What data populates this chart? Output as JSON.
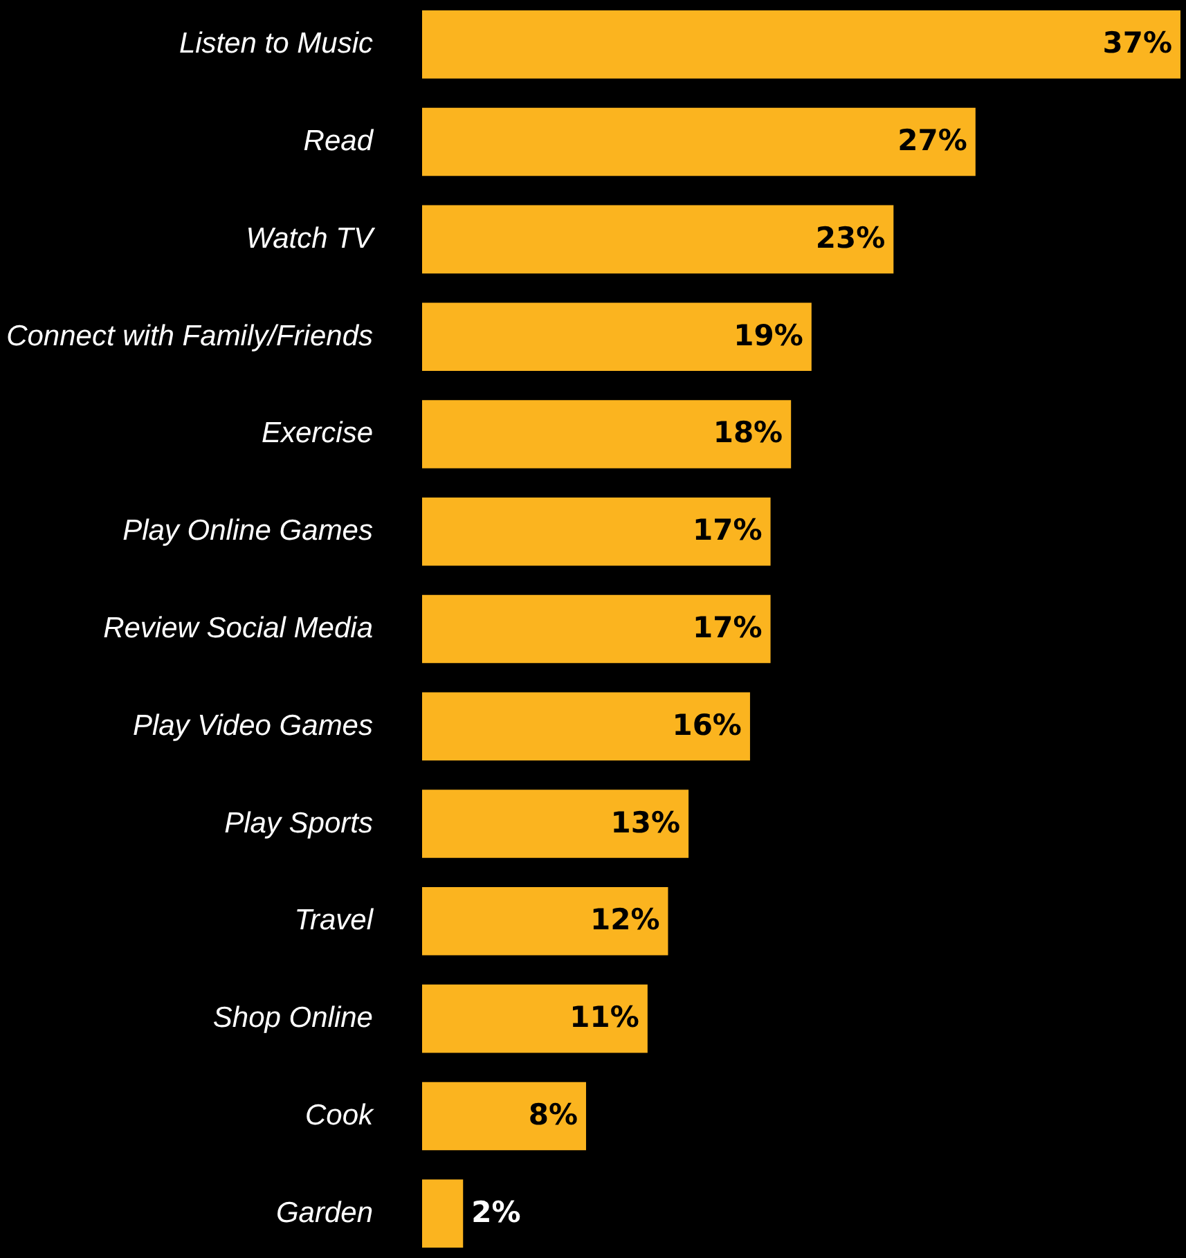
{
  "chart_data": {
    "type": "bar",
    "orientation": "horizontal",
    "categories": [
      "Listen to Music",
      "Read",
      "Watch TV",
      "Connect with Family/Friends",
      "Exercise",
      "Play Online Games",
      "Review Social Media",
      "Play Video Games",
      "Play Sports",
      "Travel",
      "Shop Online",
      "Cook",
      "Garden"
    ],
    "values": [
      37,
      27,
      23,
      19,
      18,
      17,
      17,
      16,
      13,
      12,
      11,
      8,
      2
    ],
    "value_labels": [
      "37%",
      "27%",
      "23%",
      "19%",
      "18%",
      "17%",
      "17%",
      "16%",
      "13%",
      "12%",
      "11%",
      "8%",
      "2%"
    ],
    "color": "#fbb41f",
    "xlim": [
      0,
      37
    ],
    "tick_labels": "y",
    "grid": false
  }
}
